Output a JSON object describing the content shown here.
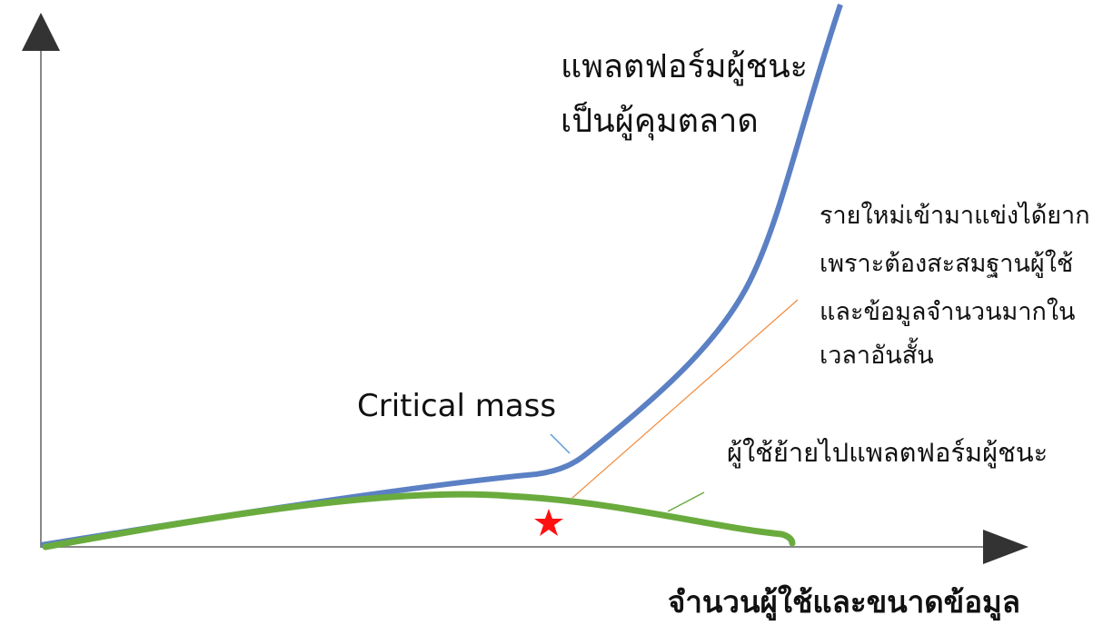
{
  "winner_label": [
    "แพลตฟอร์มผู้ชนะ",
    "เป็นผู้คุมตลาด"
  ],
  "barrier_note": [
    "รายใหม่เข้ามาแข่งได้ยาก",
    "เพราะต้องสะสมฐานผู้ใช้",
    "และข้อมูลจำนวนมากใน",
    "เวลาอันสั้น"
  ],
  "critical_mass_label": "Critical mass",
  "migration_label": "ผู้ใช้ย้ายไปแพลตฟอร์มผู้ชนะ",
  "x_axis_label": "จำนวนผู้ใช้และขนาดข้อมูล"
}
